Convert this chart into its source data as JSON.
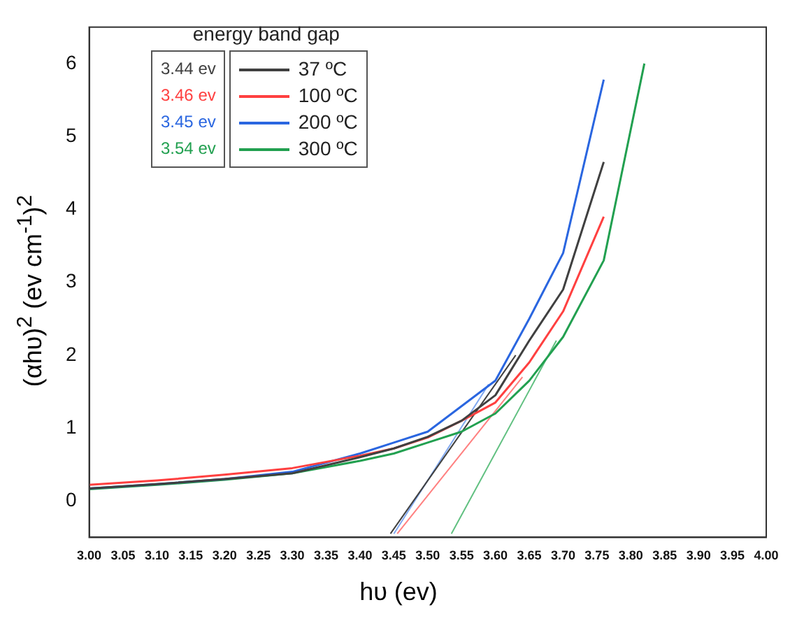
{
  "chart_data": {
    "type": "line",
    "xlabel": "hυ (ev)",
    "ylabel": "(αhυ)$^{2}$ (ev cm$^{-1}$)$^{2}$",
    "legend_title": "energy band gap",
    "legend": "top left",
    "grid": false,
    "marker": "none",
    "line_style": "solid",
    "x": [
      3.0,
      3.1,
      3.2,
      3.3,
      3.4,
      3.45,
      3.5,
      3.55,
      3.6,
      3.65,
      3.7,
      3.76
    ],
    "xlim": [
      3.0,
      4.0
    ],
    "xticks": [
      {
        "value": 3.0,
        "label": "3.00"
      },
      3.05,
      {
        "value": 3.1,
        "label": "3.10"
      },
      3.15,
      {
        "value": 3.2,
        "label": "3.20"
      },
      3.25,
      {
        "value": 3.3,
        "label": "3.30"
      },
      3.35,
      {
        "value": 3.4,
        "label": "3.40"
      },
      3.45,
      {
        "value": 3.5,
        "label": "3.50"
      },
      3.55,
      {
        "value": 3.6,
        "label": "3.60"
      },
      3.65,
      {
        "value": 3.7,
        "label": "3.70"
      },
      3.75,
      {
        "value": 3.8,
        "label": "3.80"
      },
      3.85,
      {
        "value": 3.9,
        "label": "3.90"
      },
      3.95,
      {
        "value": 4.0,
        "label": "4.00"
      }
    ],
    "ylim": [
      -0.5,
      6.5
    ],
    "yticks": [
      0,
      1,
      2,
      3,
      4,
      5,
      6
    ],
    "annotations": [
      "3.44 ev",
      "3.46 ev",
      "3.45 ev",
      "3.54 ev"
    ],
    "series": [
      {
        "name": "37 ºC",
        "color": "#404040",
        "values": [
          0.17,
          0.23,
          0.3,
          0.38,
          0.6,
          0.72,
          0.88,
          1.1,
          1.45,
          2.2,
          2.9,
          4.65
        ]
      },
      {
        "name": "100 ºC",
        "color": "#ff4040",
        "values": [
          0.22,
          0.28,
          0.36,
          0.45,
          0.62,
          0.72,
          0.87,
          1.1,
          1.35,
          1.9,
          2.6,
          3.9
        ]
      },
      {
        "name": "200 ºC",
        "color": "#2a66e0",
        "values": [
          0.17,
          0.23,
          0.3,
          0.4,
          0.65,
          0.8,
          0.95,
          1.3,
          1.65,
          2.5,
          3.4,
          5.78
        ]
      },
      {
        "name": "300 ºC",
        "color": "#22a050",
        "x": [
          3.0,
          3.1,
          3.2,
          3.3,
          3.4,
          3.45,
          3.5,
          3.55,
          3.6,
          3.65,
          3.7,
          3.76,
          3.82
        ],
        "values": [
          0.16,
          0.22,
          0.29,
          0.38,
          0.55,
          0.65,
          0.8,
          0.95,
          1.2,
          1.65,
          2.25,
          3.3,
          6.0
        ]
      },
      {
        "type": "line",
        "color": "#404040",
        "x": [
          3.445,
          3.63
        ],
        "values": [
          -0.45,
          2.0
        ]
      },
      {
        "type": "line",
        "color": "#ff8080",
        "x": [
          3.455,
          3.64
        ],
        "values": [
          -0.45,
          1.7
        ]
      },
      {
        "type": "line",
        "color": "#80a8f0",
        "x": [
          3.45,
          3.59
        ],
        "values": [
          -0.45,
          1.6
        ]
      },
      {
        "type": "line",
        "color": "#60c080",
        "x": [
          3.535,
          3.69
        ],
        "values": [
          -0.45,
          2.2
        ]
      }
    ]
  }
}
